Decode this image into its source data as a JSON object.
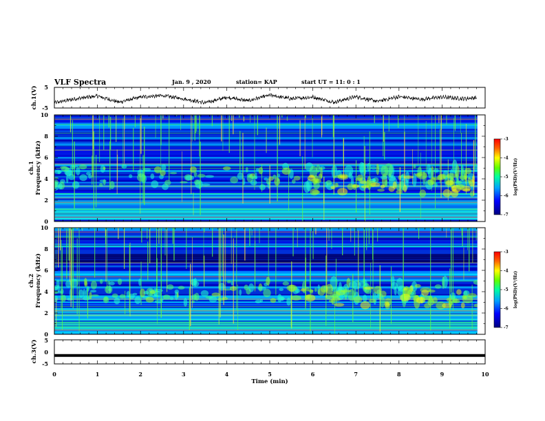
{
  "header": {
    "title": "VLF Spectra",
    "date": "Jan. 9 , 2020",
    "station": "station= KAP",
    "start": "start UT = 11: 0 : 1"
  },
  "chart_data": [
    {
      "type": "line",
      "name": "ch1-waveform",
      "ylabel": "ch.1(V)",
      "ylim": [
        -5,
        5
      ],
      "yticks": [
        "5",
        "-5"
      ],
      "xlim": [
        0,
        10
      ],
      "trend_x": [
        0,
        0.5,
        1.0,
        1.5,
        2.0,
        2.5,
        3.0,
        3.5,
        4.0,
        4.5,
        5.0,
        5.5,
        6.0,
        6.5,
        7.0,
        7.5,
        8.0,
        8.5,
        9.0,
        9.5,
        9.8
      ],
      "trend_y": [
        -2.5,
        -0.5,
        0.8,
        -2.2,
        0.3,
        1.0,
        -0.5,
        -2.5,
        0.2,
        -1.5,
        1.2,
        -0.5,
        0.3,
        -2.2,
        0.5,
        -1.8,
        0.5,
        -0.8,
        0.3,
        -0.5,
        0.0
      ]
    },
    {
      "type": "heatmap",
      "name": "ch1-spectrogram",
      "ylabel": "ch.1",
      "ylabel2": "Frequency (kHz)",
      "ylim": [
        0,
        10
      ],
      "yticks": [
        "0",
        "2",
        "4",
        "6",
        "8",
        "10"
      ],
      "xlim": [
        0,
        10
      ],
      "emission_kHz": [
        1.0,
        3.8,
        4.5
      ],
      "colorbar": {
        "label": "log(PSD)(V²/Hz)",
        "ticks": [
          "-3",
          "-4",
          "-5",
          "-6",
          "-7"
        ],
        "range": [
          -7,
          -3
        ]
      }
    },
    {
      "type": "heatmap",
      "name": "ch2-spectrogram",
      "ylabel": "ch.2",
      "ylabel2": "Frequency (kHz)",
      "ylim": [
        0,
        10
      ],
      "yticks": [
        "0",
        "2",
        "4",
        "6",
        "8",
        "10"
      ],
      "xlim": [
        0,
        10
      ],
      "colorbar": {
        "label": "log(PSD)(V²/Hz)",
        "ticks": [
          "-3",
          "-4",
          "-5",
          "-6",
          "-7"
        ],
        "range": [
          -7,
          -3
        ]
      }
    },
    {
      "type": "line",
      "name": "ch3-waveform",
      "ylabel": "ch.3(V)",
      "ylim": [
        -5,
        5
      ],
      "yticks": [
        "5",
        "0",
        "-5"
      ],
      "xlim": [
        0,
        10
      ],
      "constant_y": -1.5
    }
  ],
  "xaxis": {
    "label": "Time (min)",
    "ticks": [
      "0",
      "1",
      "2",
      "3",
      "4",
      "5",
      "6",
      "7",
      "8",
      "9",
      "10"
    ]
  },
  "colors": {
    "dark_blue": "#0000a0",
    "blue": "#0040ff",
    "cyan": "#00c8ff",
    "green": "#40ff60",
    "yellow": "#ffff00",
    "red": "#ff0000"
  }
}
